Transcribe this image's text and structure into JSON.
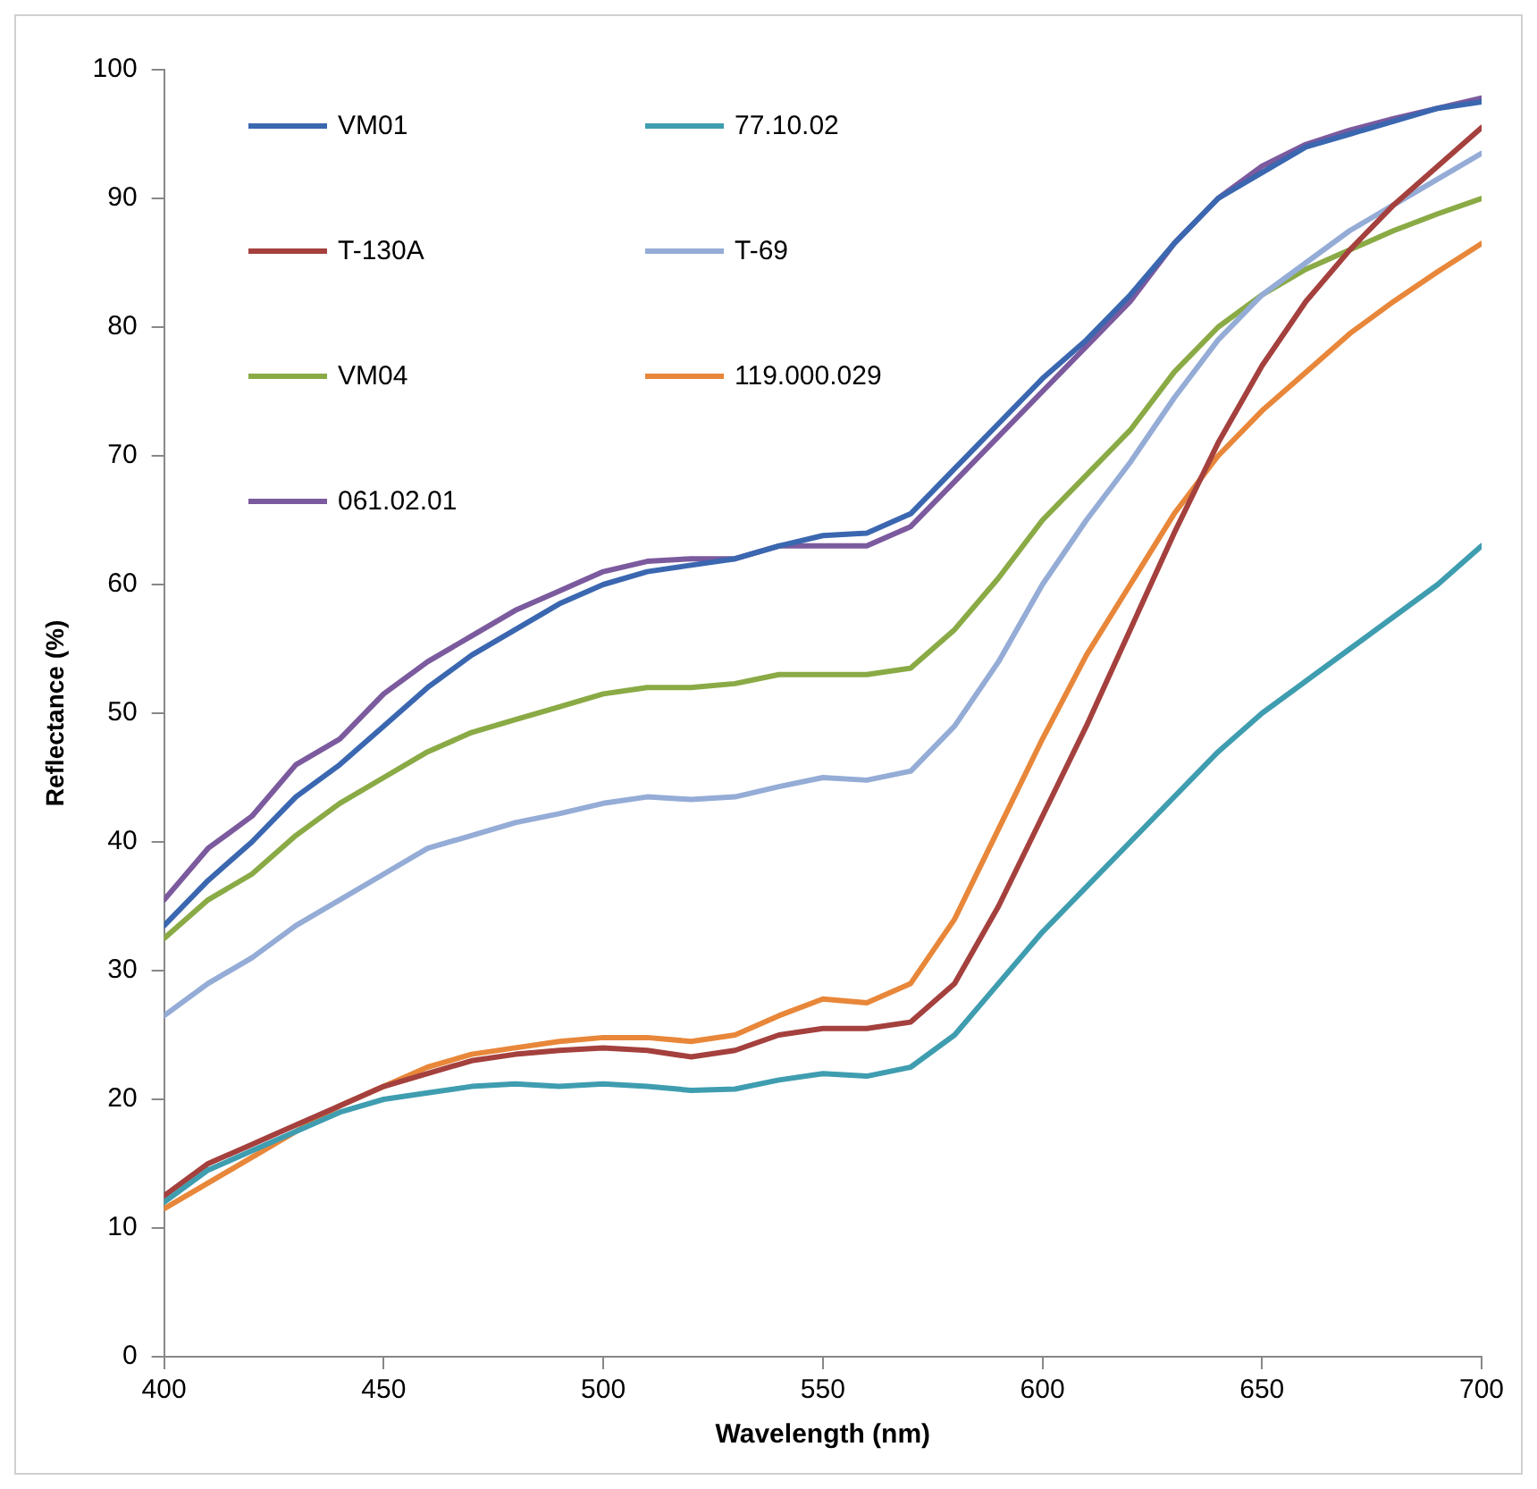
{
  "chart_data": {
    "type": "line",
    "xlabel": "Wavelength (nm)",
    "ylabel": "Reflectance (%)",
    "x": [
      400,
      410,
      420,
      430,
      440,
      450,
      460,
      470,
      480,
      490,
      500,
      510,
      520,
      530,
      540,
      550,
      560,
      570,
      580,
      590,
      600,
      610,
      620,
      630,
      640,
      650,
      660,
      670,
      680,
      690,
      700
    ],
    "xlim": [
      400,
      700
    ],
    "xticks": [
      400,
      450,
      500,
      550,
      600,
      650,
      700
    ],
    "ylim": [
      0,
      100
    ],
    "yticks": [
      0,
      10,
      20,
      30,
      40,
      50,
      60,
      70,
      80,
      90,
      100
    ],
    "grid": false,
    "legend": "top left",
    "marker": "none",
    "line_style": "solid",
    "series": [
      {
        "name": "VM01",
        "color": "#3a67b0",
        "values": [
          33.5,
          37,
          40,
          43.5,
          46,
          49,
          52,
          54.5,
          56.5,
          58.5,
          60,
          61,
          61.5,
          62,
          63,
          63.8,
          64,
          65.5,
          69,
          72.5,
          76,
          79,
          82.5,
          86.5,
          90,
          92,
          94,
          95,
          96,
          97,
          97.5
        ]
      },
      {
        "name": "77.10.02",
        "color": "#3f9db0",
        "values": [
          12,
          14.5,
          16,
          17.5,
          19,
          20,
          20.5,
          21,
          21.2,
          21,
          21.2,
          21,
          20.7,
          20.8,
          21.5,
          22,
          21.8,
          22.5,
          25,
          29,
          33,
          36.5,
          40,
          43.5,
          47,
          50,
          52.5,
          55,
          57.5,
          60,
          63
        ]
      },
      {
        "name": "T-130A",
        "color": "#a4403d",
        "values": [
          12.5,
          15,
          16.5,
          18,
          19.5,
          21,
          22,
          23,
          23.5,
          23.8,
          24,
          23.8,
          23.3,
          23.8,
          25,
          25.5,
          25.5,
          26,
          29,
          35,
          42,
          49,
          56.5,
          64,
          71,
          77,
          82,
          86,
          89.5,
          92.5,
          95.5
        ]
      },
      {
        "name": "T-69",
        "color": "#94acd6",
        "values": [
          26.5,
          29,
          31,
          33.5,
          35.5,
          37.5,
          39.5,
          40.5,
          41.5,
          42.2,
          43,
          43.5,
          43.3,
          43.5,
          44.3,
          45,
          44.8,
          45.5,
          49,
          54,
          60,
          65,
          69.5,
          74.5,
          79,
          82.5,
          85,
          87.5,
          89.5,
          91.5,
          93.5
        ]
      },
      {
        "name": "VM04",
        "color": "#8aaa45",
        "values": [
          32.5,
          35.5,
          37.5,
          40.5,
          43,
          45,
          47,
          48.5,
          49.5,
          50.5,
          51.5,
          52,
          52,
          52.3,
          53,
          53,
          53,
          53.5,
          56.5,
          60.5,
          65,
          68.5,
          72,
          76.5,
          80,
          82.5,
          84.5,
          86,
          87.5,
          88.8,
          90
        ]
      },
      {
        "name": "119.000.029",
        "color": "#e8873a",
        "values": [
          11.5,
          13.5,
          15.5,
          17.5,
          19.5,
          21,
          22.5,
          23.5,
          24,
          24.5,
          24.8,
          24.8,
          24.5,
          25,
          26.5,
          27.8,
          27.5,
          29,
          34,
          41,
          48,
          54.5,
          60,
          65.5,
          70,
          73.5,
          76.5,
          79.5,
          82,
          84.3,
          86.5
        ]
      },
      {
        "name": "061.02.01",
        "color": "#7b5a9e",
        "values": [
          35.5,
          39.5,
          42,
          46,
          48,
          51.5,
          54,
          56,
          58,
          59.5,
          61,
          61.8,
          62,
          62,
          63,
          63,
          63,
          64.5,
          68,
          71.5,
          75,
          78.5,
          82,
          86.5,
          90,
          92.5,
          94.2,
          95.3,
          96.2,
          97,
          97.8
        ]
      }
    ]
  }
}
